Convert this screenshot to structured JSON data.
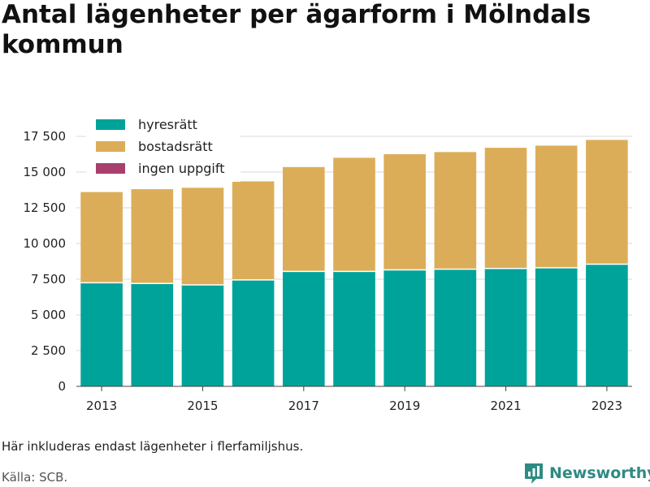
{
  "title": "Antal lägenheter per ägarform i Mölndals kommun",
  "note": "Här inkluderas endast lägenheter i flerfamiljshus.",
  "source": "Källa: SCB.",
  "brand": {
    "name": "Newsworthy",
    "icon": "newsworthy-logo-icon"
  },
  "colors": {
    "hyresratt": "#00a39a",
    "bostadsratt": "#dcad58",
    "ingen": "#a83f6c",
    "grid": "#d9d9d9"
  },
  "chart_data": {
    "type": "bar",
    "stacked": true,
    "categories": [
      2013,
      2014,
      2015,
      2016,
      2017,
      2018,
      2019,
      2020,
      2021,
      2022,
      2023
    ],
    "x_tick_labels": [
      "2013",
      "2015",
      "2017",
      "2019",
      "2021",
      "2023"
    ],
    "series": [
      {
        "name": "hyresrätt",
        "color": "#00a39a",
        "values": [
          7250,
          7200,
          7100,
          7450,
          8050,
          8050,
          8150,
          8200,
          8250,
          8300,
          8550
        ]
      },
      {
        "name": "bostadsrätt",
        "color": "#dcad58",
        "values": [
          6350,
          6600,
          6800,
          6900,
          7300,
          7950,
          8100,
          8200,
          8450,
          8550,
          8700
        ]
      },
      {
        "name": "ingen uppgift",
        "color": "#a83f6c",
        "values": [
          0,
          0,
          0,
          0,
          0,
          0,
          0,
          0,
          0,
          0,
          0
        ]
      }
    ],
    "y_ticks": [
      0,
      2500,
      5000,
      7500,
      10000,
      12500,
      15000,
      17500
    ],
    "y_tick_labels": [
      "0",
      "2 500",
      "5 000",
      "7 500",
      "10 000",
      "12 500",
      "15 000",
      "17 500"
    ],
    "ylim": [
      0,
      17500
    ],
    "grid": true,
    "legend_position": "top-left"
  }
}
